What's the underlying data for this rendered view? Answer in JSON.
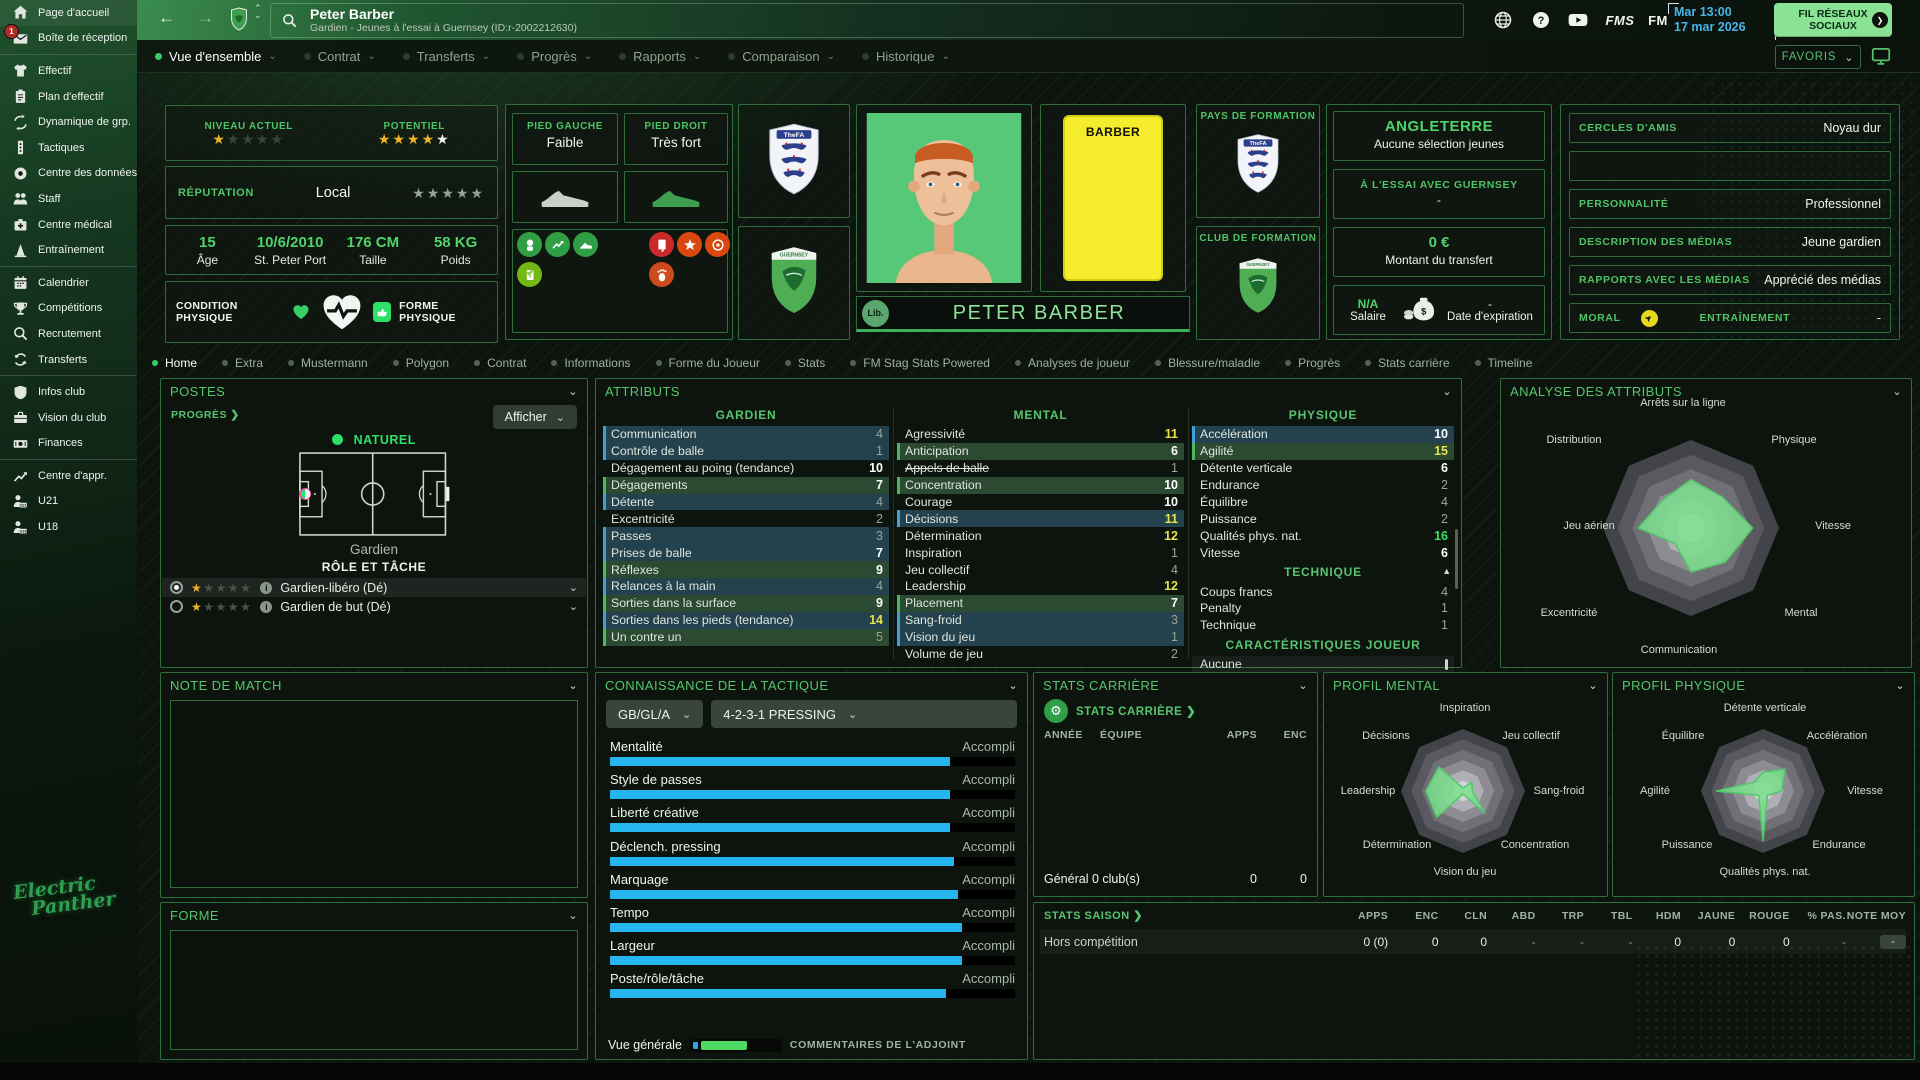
{
  "sidebar": {
    "items": [
      {
        "icon": "home",
        "label": "Page d'accueil"
      },
      {
        "icon": "mail",
        "label": "Boîte de réception",
        "badge": "1"
      },
      {
        "icon": "shirt",
        "label": "Effectif"
      },
      {
        "icon": "clipboard",
        "label": "Plan d'effectif"
      },
      {
        "icon": "dynamics",
        "label": "Dynamique de grp."
      },
      {
        "icon": "tactics",
        "label": "Tactiques"
      },
      {
        "icon": "data",
        "label": "Centre des données"
      },
      {
        "icon": "staff",
        "label": "Staff"
      },
      {
        "icon": "medical",
        "label": "Centre médical"
      },
      {
        "icon": "training",
        "label": "Entraînement"
      },
      {
        "icon": "calendar",
        "label": "Calendrier"
      },
      {
        "icon": "trophy",
        "label": "Compétitions"
      },
      {
        "icon": "search",
        "label": "Recrutement"
      },
      {
        "icon": "transfers",
        "label": "Transferts"
      },
      {
        "icon": "shield",
        "label": "Infos club"
      },
      {
        "icon": "briefcase",
        "label": "Vision du club"
      },
      {
        "icon": "money",
        "label": "Finances"
      },
      {
        "icon": "growth",
        "label": "Centre d'appr."
      },
      {
        "icon": "u21",
        "label": "U21"
      },
      {
        "icon": "u18",
        "label": "U18"
      }
    ],
    "separators_after": [
      1,
      9,
      13,
      16
    ],
    "logo_line1": "Electric",
    "logo_line2": "Panther"
  },
  "titlebar": {
    "player_name": "Peter Barber",
    "player_subtitle": "Gardien - Jeunes à l'essai à Guernsey (ID:r-2002212630)",
    "time": "Mar 13:00",
    "date": "17 mar 2026",
    "social_button_line1": "FIL RÉSEAUX",
    "social_button_line2": "SOCIAUX",
    "favorites_label": "FAVORIS",
    "brand_fms": "FMS",
    "brand_fm": "FM"
  },
  "nav_tabs": {
    "items": [
      "Vue d'ensemble",
      "Contrat",
      "Transferts",
      "Progrès",
      "Rapports",
      "Comparaison",
      "Historique"
    ],
    "active": 0
  },
  "sub_tabs": {
    "items": [
      "Home",
      "Extra",
      "Mustermann",
      "Polygon",
      "Contrat",
      "Informations",
      "Forme du Joueur",
      "Stats",
      "FM Stag Stats Powered",
      "Analyses de joueur",
      "Blessure/maladie",
      "Progrès",
      "Stats carrière",
      "Timeline"
    ],
    "active": 0
  },
  "overview": {
    "ability": {
      "current_label": "NIVEAU ACTUEL",
      "current_stars": 1,
      "potential_label": "POTENTIEL",
      "potential_gold": 4,
      "potential_white": 1,
      "total_stars": 5
    },
    "reputation": {
      "label": "RÉPUTATION",
      "value": "Local",
      "stars": 5
    },
    "vitals": [
      {
        "value": "15",
        "label": "Âge"
      },
      {
        "value": "10/6/2010",
        "label": "St. Peter Port"
      },
      {
        "value": "176 CM",
        "label": "Taille"
      },
      {
        "value": "58 KG",
        "label": "Poids"
      }
    ],
    "condition": {
      "left_label": "CONDITION PHYSIQUE",
      "right_label": "FORME PHYSIQUE"
    },
    "feet": {
      "left_label": "PIED GAUCHE",
      "left_value": "Faible",
      "right_label": "PIED DROIT",
      "right_value": "Très fort"
    },
    "formation": {
      "country_label": "PAYS DE FORMATION",
      "club_label": "CLUB DE FORMATION"
    },
    "selection": {
      "country": "ANGLETERRE",
      "youth_note": "Aucune sélection jeunes",
      "trial_label": "À L'ESSAI AVEC GUERNSEY",
      "trial_value": "-",
      "fee_value": "0 €",
      "fee_label": "Montant du transfert",
      "wage_value": "N/A",
      "wage_label": "Salaire",
      "expiry_value": "-",
      "expiry_label": "Date d'expiration"
    },
    "name_plate": "PETER BARBER",
    "lib_badge": "Lib.",
    "card_name": "BARBER",
    "profile_rows": [
      {
        "label": "CERCLES D'AMIS",
        "value": "Noyau dur"
      },
      {
        "label": "",
        "value": ""
      },
      {
        "label": "PERSONNALITÉ",
        "value": "Professionnel"
      },
      {
        "label": "DESCRIPTION DES MÉDIAS",
        "value": "Jeune gardien"
      },
      {
        "label": "RAPPORTS AVEC LES MÉDIAS",
        "value": "Apprécié des médias"
      }
    ],
    "moral_row": {
      "label": "MORAL",
      "training_label": "ENTRAÎNEMENT",
      "training_value": "-"
    }
  },
  "postes": {
    "title": "POSTES",
    "progress_link": "PROGRÈS",
    "show_button": "Afficher",
    "legend_label": "NATUREL",
    "position_name": "Gardien",
    "role_header": "RÔLE ET TÂCHE",
    "roles": [
      {
        "name": "Gardien-libéro (Dé)",
        "stars": 1,
        "selected": true
      },
      {
        "name": "Gardien de but (Dé)",
        "stars": 1,
        "selected": false
      }
    ]
  },
  "attributes": {
    "title": "ATTRIBUTS",
    "gardien": {
      "header": "GARDIEN",
      "rows": [
        {
          "n": "Communication",
          "v": 4,
          "s": "blue"
        },
        {
          "n": "Contrôle de balle",
          "v": 1,
          "s": "blue"
        },
        {
          "n": "Dégagement au poing (tendance)",
          "v": 10,
          "s": "dark"
        },
        {
          "n": "Dégagements",
          "v": 7,
          "s": "green"
        },
        {
          "n": "Détente",
          "v": 4,
          "s": "blue"
        },
        {
          "n": "Excentricité",
          "v": 2,
          "s": "dark"
        },
        {
          "n": "Passes",
          "v": 3,
          "s": "blue"
        },
        {
          "n": "Prises de balle",
          "v": 7,
          "s": "blue"
        },
        {
          "n": "Réflexes",
          "v": 9,
          "s": "green"
        },
        {
          "n": "Relances à la main",
          "v": 4,
          "s": "blue"
        },
        {
          "n": "Sorties dans la surface",
          "v": 9,
          "s": "green"
        },
        {
          "n": "Sorties dans les pieds (tendance)",
          "v": 14,
          "s": "blue"
        },
        {
          "n": "Un contre un",
          "v": 5,
          "s": "green"
        }
      ]
    },
    "mental": {
      "header": "MENTAL",
      "rows": [
        {
          "n": "Agressivité",
          "v": 11,
          "s": "dark"
        },
        {
          "n": "Anticipation",
          "v": 6,
          "s": "green"
        },
        {
          "n": "Appels de balle",
          "v": 1,
          "s": "dark",
          "st": true
        },
        {
          "n": "Concentration",
          "v": 10,
          "s": "green"
        },
        {
          "n": "Courage",
          "v": 10,
          "s": "dark"
        },
        {
          "n": "Décisions",
          "v": 11,
          "s": "blue"
        },
        {
          "n": "Détermination",
          "v": 12,
          "s": "dark"
        },
        {
          "n": "Inspiration",
          "v": 1,
          "s": "dark"
        },
        {
          "n": "Jeu collectif",
          "v": 4,
          "s": "dark"
        },
        {
          "n": "Leadership",
          "v": 12,
          "s": "dark"
        },
        {
          "n": "Placement",
          "v": 7,
          "s": "green"
        },
        {
          "n": "Sang-froid",
          "v": 3,
          "s": "blue"
        },
        {
          "n": "Vision du jeu",
          "v": 1,
          "s": "blue"
        },
        {
          "n": "Volume de jeu",
          "v": 2,
          "s": "dark"
        }
      ]
    },
    "physique": {
      "header": "PHYSIQUE",
      "rows": [
        {
          "n": "Accélération",
          "v": 10,
          "s": "blue"
        },
        {
          "n": "Agilité",
          "v": 15,
          "s": "green"
        },
        {
          "n": "Détente verticale",
          "v": 6,
          "s": "dark"
        },
        {
          "n": "Endurance",
          "v": 2,
          "s": "dark"
        },
        {
          "n": "Équilibre",
          "v": 4,
          "s": "dark"
        },
        {
          "n": "Puissance",
          "v": 2,
          "s": "dark"
        },
        {
          "n": "Qualités phys. nat.",
          "v": 16,
          "s": "dark"
        },
        {
          "n": "Vitesse",
          "v": 6,
          "s": "dark"
        }
      ]
    },
    "technique": {
      "header": "TECHNIQUE",
      "rows": [
        {
          "n": "Coups francs",
          "v": 4,
          "s": "dark"
        },
        {
          "n": "Penalty",
          "v": 1,
          "s": "dark"
        },
        {
          "n": "Technique",
          "v": 1,
          "s": "dark"
        }
      ]
    },
    "characteristics": {
      "header": "CARACTÉRISTIQUES JOUEUR",
      "value": "Aucune"
    }
  },
  "analysis_radar": {
    "title": "ANALYSE DES ATTRIBUTS",
    "max": 20,
    "labels": [
      "Arrêts sur la ligne",
      "Physique",
      "Vitesse",
      "Mental",
      "Communication",
      "Excentricité",
      "Jeu aérien",
      "Distribution"
    ],
    "values": [
      11,
      10,
      14,
      11,
      10,
      5,
      12,
      9
    ]
  },
  "match_rating": {
    "title": "NOTE DE MATCH"
  },
  "form": {
    "title": "FORME"
  },
  "tactic": {
    "title": "CONNAISSANCE DE LA TACTIQUE",
    "dropdown1": "GB/GL/A",
    "dropdown2": "4-2-3-1 PRESSING",
    "items": [
      {
        "label": "Mentalité",
        "status": "Accompli",
        "pct": 84
      },
      {
        "label": "Style de passes",
        "status": "Accompli",
        "pct": 84
      },
      {
        "label": "Liberté créative",
        "status": "Accompli",
        "pct": 84
      },
      {
        "label": "Déclench. pressing",
        "status": "Accompli",
        "pct": 85
      },
      {
        "label": "Marquage",
        "status": "Accompli",
        "pct": 86
      },
      {
        "label": "Tempo",
        "status": "Accompli",
        "pct": 87
      },
      {
        "label": "Largeur",
        "status": "Accompli",
        "pct": 87
      },
      {
        "label": "Poste/rôle/tâche",
        "status": "Accompli",
        "pct": 83
      }
    ],
    "footer_label": "Vue générale",
    "footer_note": "COMMENTAIRES DE L'ADJOINT"
  },
  "career": {
    "title": "STATS CARRIÈRE",
    "link": "STATS CARRIÈRE",
    "columns": [
      "ANNÉE",
      "ÉQUIPE",
      "APPS",
      "ENC"
    ],
    "footer": {
      "label": "Général 0 club(s)",
      "apps": "0",
      "enc": "0"
    }
  },
  "mental_radar": {
    "title": "PROFIL MENTAL",
    "max": 20,
    "labels": [
      "Inspiration",
      "Jeu collectif",
      "Sang-froid",
      "Concentration",
      "Vision du jeu",
      "Détermination",
      "Leadership",
      "Décisions"
    ],
    "values": [
      1,
      4,
      3,
      10,
      1,
      12,
      12,
      11
    ]
  },
  "physical_radar": {
    "title": "PROFIL PHYSIQUE",
    "max": 20,
    "labels": [
      "Détente verticale",
      "Accélération",
      "Vitesse",
      "Endurance",
      "Qualités phys. nat.",
      "Puissance",
      "Agilité",
      "Équilibre"
    ],
    "values": [
      6,
      10,
      6,
      2,
      16,
      2,
      15,
      4
    ]
  },
  "season": {
    "title": "STATS SAISON",
    "columns": [
      "APPS",
      "ENC",
      "CLN",
      "ABD",
      "TRP",
      "TBL",
      "HDM",
      "JAUNE",
      "ROUGE",
      "% PAS.",
      "NOTE MOY"
    ],
    "rows": [
      {
        "name": "Hors compétition",
        "values": [
          "0 (0)",
          "0",
          "0",
          "-",
          "-",
          "-",
          "0",
          "0",
          "0",
          "-",
          "-"
        ]
      }
    ]
  }
}
